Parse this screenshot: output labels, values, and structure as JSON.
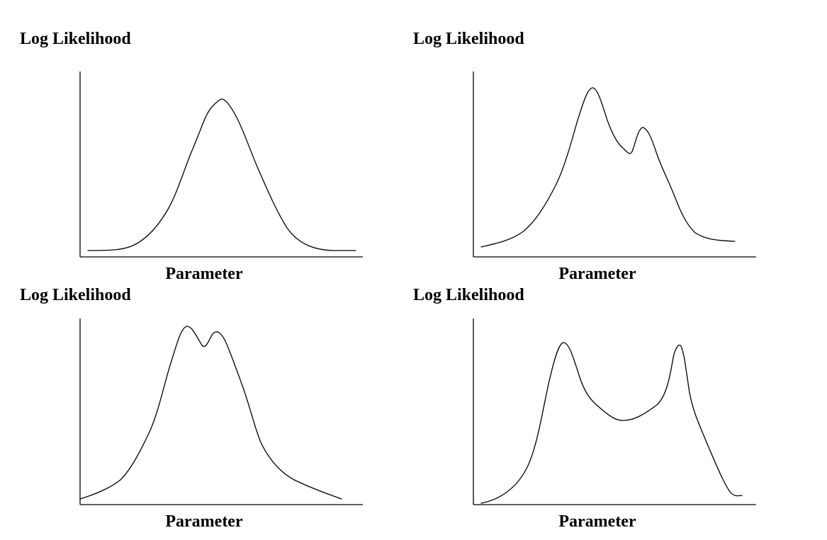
{
  "panels": [
    {
      "ylabel": "Log Likelihood",
      "xlabel": "Parameter",
      "shape": "single-peak"
    },
    {
      "ylabel": "Log Likelihood",
      "xlabel": "Parameter",
      "shape": "two-peaks-unequal"
    },
    {
      "ylabel": "Log Likelihood",
      "xlabel": "Parameter",
      "shape": "two-close-peaks"
    },
    {
      "ylabel": "Log Likelihood",
      "xlabel": "Parameter",
      "shape": "two-separated-peaks"
    }
  ]
}
